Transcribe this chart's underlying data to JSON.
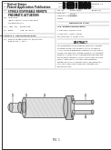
{
  "bg_color": "#ffffff",
  "border_color": "#000000",
  "barcode_color": "#111111",
  "text_color": "#222222",
  "gray_text": "#444444",
  "light_gray": "#aaaaaa",
  "title_text": "STERILE DISPOSABLE REMOTE",
  "title_text2": "PNEUMATIC ACTUATORS",
  "patent_office": "United States",
  "pub_type": "Patent Application Publication",
  "pub_sub": "(United States)",
  "pub_number": "US 2013/0068895 A1",
  "pub_date": "Feb. 7, 2013",
  "fig_label": "FIG. 1",
  "outer_border": "#000000",
  "diagram_fill": "#e0e0e0",
  "diagram_edge": "#444444",
  "diagram_fill2": "#c8c8c8",
  "diagram_fill3": "#d4d4d4"
}
